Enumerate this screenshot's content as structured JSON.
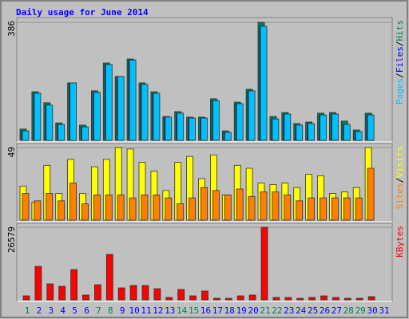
{
  "chart_data": [
    {
      "type": "bar",
      "title": "Daily usage for June 2014",
      "legend_separator": "/",
      "ylim": [
        0,
        386
      ],
      "yticks": [
        386
      ],
      "series": [
        {
          "name": "Hits",
          "color": "#00805c",
          "values": [
            37,
            159,
            123,
            57,
            188,
            50,
            162,
            253,
            209,
            266,
            188,
            159,
            78,
            94,
            76,
            76,
            136,
            31,
            125,
            167,
            386,
            78,
            91,
            55,
            60,
            89,
            91,
            63,
            34,
            89,
            null
          ]
        },
        {
          "name": "Files",
          "color": "#0000ff",
          "values": [
            31,
            154,
            115,
            52,
            188,
            44,
            157,
            248,
            209,
            263,
            183,
            154,
            76,
            89,
            73,
            73,
            130,
            26,
            120,
            162,
            373,
            70,
            86,
            50,
            55,
            83,
            86,
            52,
            29,
            83,
            null
          ]
        },
        {
          "name": "Pages",
          "color": "#00c0ff",
          "values": [
            31,
            154,
            115,
            52,
            188,
            44,
            157,
            248,
            209,
            263,
            183,
            154,
            76,
            89,
            73,
            73,
            130,
            26,
            120,
            162,
            373,
            70,
            86,
            50,
            55,
            83,
            86,
            52,
            29,
            83,
            null
          ]
        }
      ]
    },
    {
      "type": "bar",
      "legend_separator": "/",
      "ylim": [
        0,
        49
      ],
      "yticks": [
        49
      ],
      "series": [
        {
          "name": "Visits",
          "color": "#ffff00",
          "values": [
            23,
            12,
            37,
            18,
            41,
            18,
            36,
            41,
            49,
            48,
            39,
            33,
            20,
            39,
            43,
            28,
            44,
            17,
            37,
            35,
            25,
            24,
            25,
            22,
            31,
            30,
            18,
            19,
            22,
            49,
            null
          ]
        },
        {
          "name": "Sites",
          "color": "#ff8000",
          "values": [
            18,
            13,
            18,
            13,
            25,
            11,
            17,
            17,
            17,
            15,
            17,
            17,
            15,
            11,
            15,
            22,
            20,
            17,
            21,
            16,
            19,
            19,
            17,
            13,
            15,
            15,
            15,
            15,
            15,
            35,
            null
          ]
        }
      ]
    },
    {
      "type": "bar",
      "ylim": [
        0,
        26579
      ],
      "yticks": [
        26579
      ],
      "categories": [
        "1",
        "2",
        "3",
        "4",
        "5",
        "6",
        "7",
        "8",
        "9",
        "10",
        "11",
        "12",
        "13",
        "14",
        "15",
        "16",
        "17",
        "18",
        "19",
        "20",
        "21",
        "22",
        "23",
        "24",
        "25",
        "26",
        "27",
        "28",
        "29",
        "30",
        "31"
      ],
      "category_colors": [
        "#00805c",
        "#0000ff",
        "#0000ff",
        "#0000ff",
        "#0000ff",
        "#0000ff",
        "#00805c",
        "#00805c",
        "#0000ff",
        "#0000ff",
        "#0000ff",
        "#0000ff",
        "#0000ff",
        "#00805c",
        "#00805c",
        "#0000ff",
        "#0000ff",
        "#0000ff",
        "#0000ff",
        "#0000ff",
        "#00805c",
        "#00805c",
        "#0000ff",
        "#0000ff",
        "#0000ff",
        "#0000ff",
        "#0000ff",
        "#00805c",
        "#00805c",
        "#0000ff",
        "#0000ff"
      ],
      "series": [
        {
          "name": "KBytes",
          "color": "#ff0000",
          "values": [
            1460,
            12270,
            5840,
            4970,
            11100,
            1750,
            5550,
            16650,
            4380,
            5260,
            5260,
            4090,
            880,
            3800,
            1460,
            3210,
            580,
            580,
            1460,
            1750,
            26579,
            880,
            880,
            580,
            880,
            1460,
            880,
            580,
            580,
            1170,
            null
          ]
        }
      ]
    }
  ]
}
